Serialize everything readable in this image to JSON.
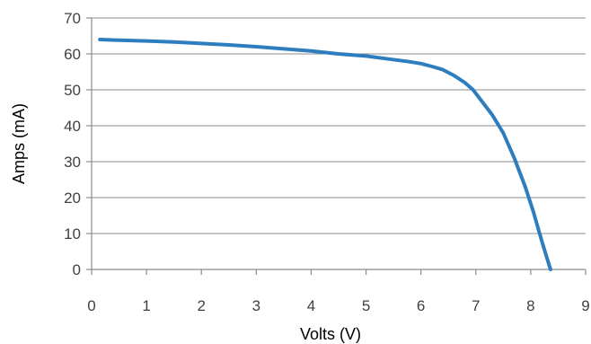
{
  "chart_data": {
    "type": "line",
    "title": "",
    "xlabel": "Volts (V)",
    "ylabel": "Amps (mA)",
    "xlim": [
      0,
      9
    ],
    "ylim": [
      0,
      70
    ],
    "x_ticks": [
      0,
      1,
      2,
      3,
      4,
      5,
      6,
      7,
      8,
      9
    ],
    "y_ticks": [
      0,
      10,
      20,
      30,
      40,
      50,
      60,
      70
    ],
    "grid": "horizontal",
    "legend": "none",
    "line_color": "#2e7ebf",
    "series": [
      {
        "x": [
          0.15,
          0.5,
          1.0,
          1.5,
          2.0,
          2.5,
          3.0,
          3.5,
          4.0,
          4.5,
          5.0,
          5.3,
          5.6,
          5.8,
          6.0,
          6.2,
          6.4,
          6.6,
          6.8,
          6.95,
          7.1,
          7.3,
          7.5,
          7.7,
          7.9,
          8.05,
          8.2,
          8.3,
          8.36
        ],
        "y": [
          64.0,
          63.8,
          63.6,
          63.3,
          62.9,
          62.5,
          62.0,
          61.4,
          60.8,
          60.0,
          59.4,
          58.8,
          58.2,
          57.8,
          57.3,
          56.5,
          55.6,
          54.0,
          52.0,
          50.0,
          47.0,
          43.0,
          38.0,
          31.0,
          23.0,
          16.0,
          8.0,
          3.0,
          0.0
        ]
      }
    ]
  }
}
